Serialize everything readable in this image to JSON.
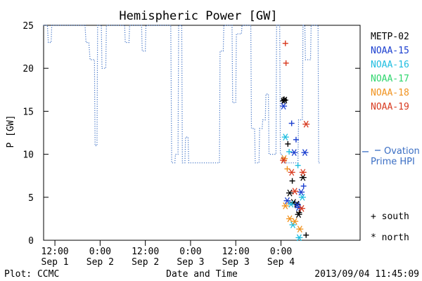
{
  "chart_data": {
    "type": "scatter",
    "title": "Hemispheric Power [GW]",
    "ylabel": "P [GW]",
    "xlabel": "Date and Time",
    "ylim": [
      0,
      25
    ],
    "xlim": [
      "2013-09-01 09:00",
      "2013-09-04 21:00"
    ],
    "yticks": [
      0,
      5,
      10,
      15,
      20,
      25
    ],
    "xticks": [
      {
        "time": "2013-09-01 12:00",
        "line1": "12:00",
        "line2": "Sep 1"
      },
      {
        "time": "2013-09-02 00:00",
        "line1": "0:00",
        "line2": "Sep 2"
      },
      {
        "time": "2013-09-02 12:00",
        "line1": "12:00",
        "line2": "Sep 2"
      },
      {
        "time": "2013-09-03 00:00",
        "line1": "0:00",
        "line2": "Sep 3"
      },
      {
        "time": "2013-09-03 12:00",
        "line1": "12:00",
        "line2": "Sep 3"
      },
      {
        "time": "2013-09-04 00:00",
        "line1": "0:00",
        "line2": "Sep 4"
      }
    ],
    "grid": false,
    "legend_position": "right",
    "ovation": {
      "name": "Ovation Prime HPI",
      "label_line1": "Ovation",
      "label_line2": "Prime HPI",
      "color": "#3a6ec4",
      "current_value": 10.3,
      "points": [
        [
          "2013-09-01 09:00",
          25
        ],
        [
          "2013-09-01 10:00",
          25
        ],
        [
          "2013-09-01 10:15",
          23
        ],
        [
          "2013-09-01 11:00",
          23
        ],
        [
          "2013-09-01 11:10",
          25
        ],
        [
          "2013-09-01 20:00",
          25
        ],
        [
          "2013-09-01 20:15",
          23
        ],
        [
          "2013-09-01 21:00",
          23
        ],
        [
          "2013-09-01 21:20",
          21
        ],
        [
          "2013-09-01 22:30",
          21
        ],
        [
          "2013-09-01 22:40",
          11
        ],
        [
          "2013-09-01 23:10",
          11
        ],
        [
          "2013-09-01 23:20",
          25
        ],
        [
          "2013-09-02 00:20",
          25
        ],
        [
          "2013-09-02 00:30",
          20
        ],
        [
          "2013-09-02 01:30",
          20
        ],
        [
          "2013-09-02 01:40",
          25
        ],
        [
          "2013-09-02 06:30",
          25
        ],
        [
          "2013-09-02 06:40",
          23
        ],
        [
          "2013-09-02 07:40",
          23
        ],
        [
          "2013-09-02 07:50",
          25
        ],
        [
          "2013-09-02 11:00",
          25
        ],
        [
          "2013-09-02 11:10",
          22
        ],
        [
          "2013-09-02 12:00",
          22
        ],
        [
          "2013-09-02 12:10",
          25
        ],
        [
          "2013-09-02 18:45",
          25
        ],
        [
          "2013-09-02 19:00",
          9
        ],
        [
          "2013-09-02 19:50",
          9
        ],
        [
          "2013-09-02 20:00",
          10
        ],
        [
          "2013-09-02 20:40",
          10
        ],
        [
          "2013-09-02 20:50",
          25
        ],
        [
          "2013-09-02 21:40",
          25
        ],
        [
          "2013-09-02 21:50",
          9
        ],
        [
          "2013-09-02 22:30",
          9
        ],
        [
          "2013-09-02 22:40",
          12
        ],
        [
          "2013-09-02 23:20",
          12
        ],
        [
          "2013-09-02 23:30",
          9
        ],
        [
          "2013-09-03 07:40",
          9
        ],
        [
          "2013-09-03 07:50",
          22
        ],
        [
          "2013-09-03 08:40",
          22
        ],
        [
          "2013-09-03 08:50",
          25
        ],
        [
          "2013-09-03 11:00",
          25
        ],
        [
          "2013-09-03 11:10",
          16
        ],
        [
          "2013-09-03 12:00",
          16
        ],
        [
          "2013-09-03 12:10",
          24
        ],
        [
          "2013-09-03 13:30",
          24
        ],
        [
          "2013-09-03 13:40",
          25
        ],
        [
          "2013-09-03 16:00",
          25
        ],
        [
          "2013-09-03 16:10",
          13
        ],
        [
          "2013-09-03 17:00",
          13
        ],
        [
          "2013-09-03 17:10",
          9
        ],
        [
          "2013-09-03 18:10",
          9
        ],
        [
          "2013-09-03 18:20",
          13
        ],
        [
          "2013-09-03 19:00",
          13
        ],
        [
          "2013-09-03 19:10",
          14
        ],
        [
          "2013-09-03 19:50",
          14
        ],
        [
          "2013-09-03 20:00",
          17
        ],
        [
          "2013-09-03 20:40",
          17
        ],
        [
          "2013-09-03 20:50",
          10
        ],
        [
          "2013-09-03 22:40",
          10
        ],
        [
          "2013-09-03 22:50",
          25
        ],
        [
          "2013-09-03 23:40",
          25
        ],
        [
          "2013-09-03 23:50",
          10
        ],
        [
          "2013-09-04 00:20",
          10
        ],
        [
          "2013-09-04 00:30",
          9
        ],
        [
          "2013-09-04 04:30",
          9
        ],
        [
          "2013-09-04 04:40",
          14
        ],
        [
          "2013-09-04 05:40",
          14
        ],
        [
          "2013-09-04 05:50",
          25
        ],
        [
          "2013-09-04 06:20",
          25
        ],
        [
          "2013-09-04 06:30",
          21
        ],
        [
          "2013-09-04 07:50",
          21
        ],
        [
          "2013-09-04 08:00",
          25
        ],
        [
          "2013-09-04 09:50",
          25
        ],
        [
          "2013-09-04 10:00",
          9
        ],
        [
          "2013-09-04 10:30",
          9
        ]
      ]
    },
    "satellites": [
      {
        "name": "METP-02",
        "color": "#000000",
        "south": [
          [
            "2013-09-04 00:50",
            16.4
          ],
          [
            "2013-09-04 01:50",
            11.2
          ],
          [
            "2013-09-04 03:00",
            6.9
          ],
          [
            "2013-09-04 04:50",
            3.2
          ],
          [
            "2013-09-04 06:40",
            0.6
          ]
        ],
        "north": [
          [
            "2013-09-04 00:40",
            16.2
          ],
          [
            "2013-09-04 01:00",
            16.3
          ],
          [
            "2013-09-04 02:20",
            5.5
          ],
          [
            "2013-09-04 03:20",
            4.4
          ],
          [
            "2013-09-04 04:10",
            4.2
          ],
          [
            "2013-09-04 04:40",
            3.0
          ],
          [
            "2013-09-04 05:50",
            7.3
          ]
        ]
      },
      {
        "name": "NOAA-15",
        "color": "#1a3ecf",
        "south": [
          [
            "2013-09-04 02:50",
            13.6
          ],
          [
            "2013-09-04 04:00",
            11.7
          ],
          [
            "2013-09-04 06:00",
            6.3
          ]
        ],
        "north": [
          [
            "2013-09-04 00:40",
            15.6
          ],
          [
            "2013-09-04 01:40",
            4.6
          ],
          [
            "2013-09-04 03:30",
            10.2
          ],
          [
            "2013-09-04 04:20",
            4.1
          ],
          [
            "2013-09-04 04:40",
            3.8
          ],
          [
            "2013-09-04 05:20",
            5.6
          ],
          [
            "2013-09-04 06:20",
            10.2
          ]
        ]
      },
      {
        "name": "NOAA-16",
        "color": "#1ebde0",
        "south": [
          [
            "2013-09-04 02:10",
            10.3
          ],
          [
            "2013-09-04 04:30",
            8.7
          ]
        ],
        "north": [
          [
            "2013-09-04 01:10",
            12.0
          ],
          [
            "2013-09-04 02:40",
            4.2
          ],
          [
            "2013-09-04 03:10",
            1.8
          ],
          [
            "2013-09-04 04:50",
            0.3
          ],
          [
            "2013-09-04 05:40",
            5.0
          ]
        ]
      },
      {
        "name": "NOAA-17",
        "color": "#2fd66e",
        "south": [],
        "north": []
      },
      {
        "name": "NOAA-18",
        "color": "#f0921e",
        "south": [
          [
            "2013-09-04 01:40",
            8.3
          ]
        ],
        "north": [
          [
            "2013-09-04 00:50",
            9.5
          ],
          [
            "2013-09-04 01:10",
            4.0
          ],
          [
            "2013-09-04 02:20",
            2.5
          ],
          [
            "2013-09-04 03:40",
            2.2
          ],
          [
            "2013-09-04 05:00",
            1.3
          ]
        ]
      },
      {
        "name": "NOAA-19",
        "color": "#d83a20",
        "south": [
          [
            "2013-09-04 01:10",
            22.9
          ],
          [
            "2013-09-04 01:20",
            20.6
          ]
        ],
        "north": [
          [
            "2013-09-04 00:40",
            9.3
          ],
          [
            "2013-09-04 02:50",
            7.9
          ],
          [
            "2013-09-04 03:40",
            5.7
          ],
          [
            "2013-09-04 05:30",
            3.7
          ],
          [
            "2013-09-04 05:50",
            7.9
          ],
          [
            "2013-09-04 06:40",
            13.5
          ]
        ]
      }
    ],
    "marker_legend": {
      "south_symbol": "+",
      "south_label": "south",
      "north_symbol": "*",
      "north_label": "north"
    }
  },
  "footer": {
    "plot_credit": "Plot: CCMC",
    "timestamp": "2013/09/04 11:45:09"
  }
}
